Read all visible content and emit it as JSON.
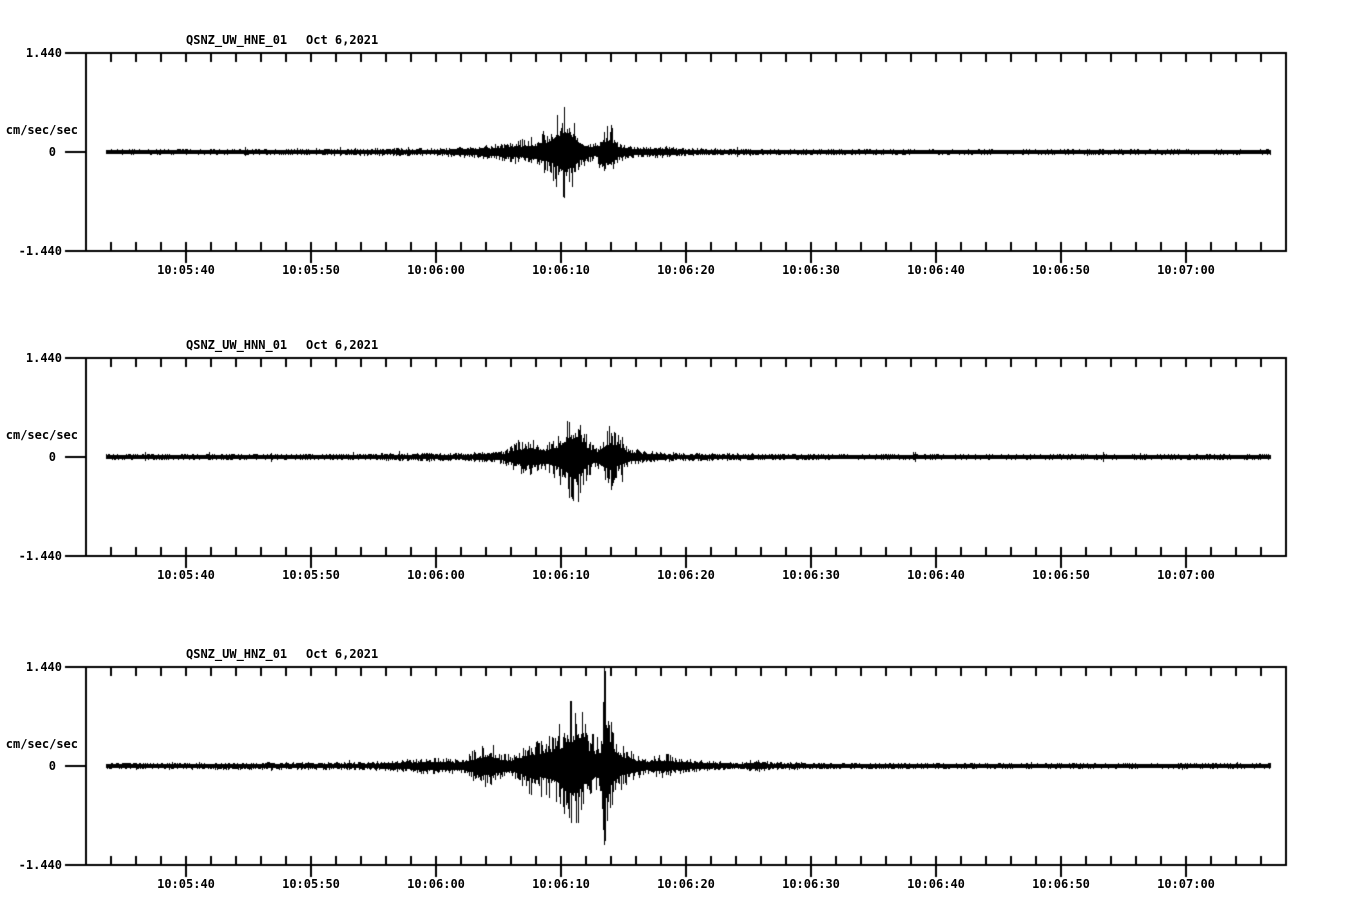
{
  "page": {
    "background": "#ffffff",
    "trace_color": "#000000"
  },
  "x_axis": {
    "tick_labels": [
      "10:05:40",
      "10:05:50",
      "10:06:00",
      "10:06:10",
      "10:06:20",
      "10:06:30",
      "10:06:40",
      "10:06:50",
      "10:07:00"
    ]
  },
  "panels": [
    {
      "station": "QSNZ_UW_HNE_01",
      "date": "Oct 6,2021",
      "y_axis": {
        "max": "1.440",
        "units": "cm/sec/sec",
        "zero": "0",
        "min": "-1.440"
      }
    },
    {
      "station": "QSNZ_UW_HNN_01",
      "date": "Oct 6,2021",
      "y_axis": {
        "max": "1.440",
        "units": "cm/sec/sec",
        "zero": "0",
        "min": "-1.440"
      }
    },
    {
      "station": "QSNZ_UW_HNZ_01",
      "date": "Oct 6,2021",
      "y_axis": {
        "max": "1.440",
        "units": "cm/sec/sec",
        "zero": "0",
        "min": "-1.440"
      }
    }
  ],
  "chart_data": [
    {
      "type": "line",
      "subtype": "seismogram",
      "title": "QSNZ_UW_HNE_01  Oct 6,2021",
      "ylabel": "cm/sec/sec",
      "ylim": [
        -1.44,
        1.44
      ],
      "yticks": [
        -1.44,
        0,
        1.44
      ],
      "x_start": "10:05:32",
      "x_end": "10:07:08",
      "x_tick_labels": [
        "10:05:40",
        "10:05:50",
        "10:06:00",
        "10:06:10",
        "10:06:20",
        "10:06:30",
        "10:06:40",
        "10:06:50",
        "10:07:00"
      ],
      "x_minor_tick_sec": 2,
      "x_major_tick_sec": 10,
      "series": [
        {
          "name": "QSNZ_UW_HNE_01",
          "units": "cm/sec/sec",
          "time_origin": "10:05:32",
          "envelope_points_t_sec_amp": [
            [
              1.6,
              0.03
            ],
            [
              10,
              0.028
            ],
            [
              18,
              0.03
            ],
            [
              24,
              0.042
            ],
            [
              25.5,
              0.055
            ],
            [
              27,
              0.042
            ],
            [
              29,
              0.055
            ],
            [
              31,
              0.08
            ],
            [
              33,
              0.11
            ],
            [
              34.5,
              0.16
            ],
            [
              36,
              0.22
            ],
            [
              37.3,
              0.4
            ],
            [
              38.3,
              0.76
            ],
            [
              39.0,
              0.5
            ],
            [
              39.7,
              0.2
            ],
            [
              40.8,
              0.13
            ],
            [
              41.4,
              0.34
            ],
            [
              41.9,
              0.44
            ],
            [
              42.5,
              0.18
            ],
            [
              43.2,
              0.09
            ],
            [
              44.5,
              0.065
            ],
            [
              46.2,
              0.07
            ],
            [
              48,
              0.05
            ],
            [
              52,
              0.04
            ],
            [
              58,
              0.032
            ],
            [
              70,
              0.028
            ],
            [
              94.7,
              0.028
            ]
          ]
        }
      ]
    },
    {
      "type": "line",
      "subtype": "seismogram",
      "title": "QSNZ_UW_HNN_01  Oct 6,2021",
      "ylabel": "cm/sec/sec",
      "ylim": [
        -1.44,
        1.44
      ],
      "yticks": [
        -1.44,
        0,
        1.44
      ],
      "x_start": "10:05:32",
      "x_end": "10:07:08",
      "x_tick_labels": [
        "10:05:40",
        "10:05:50",
        "10:06:00",
        "10:06:10",
        "10:06:20",
        "10:06:30",
        "10:06:40",
        "10:06:50",
        "10:07:00"
      ],
      "x_minor_tick_sec": 2,
      "x_major_tick_sec": 10,
      "series": [
        {
          "name": "QSNZ_UW_HNN_01",
          "units": "cm/sec/sec",
          "time_origin": "10:05:32",
          "envelope_points_t_sec_amp": [
            [
              1.6,
              0.03
            ],
            [
              12,
              0.032
            ],
            [
              20,
              0.03
            ],
            [
              26,
              0.045
            ],
            [
              28,
              0.052
            ],
            [
              30,
              0.05
            ],
            [
              32,
              0.062
            ],
            [
              33.5,
              0.1
            ],
            [
              34.6,
              0.24
            ],
            [
              35.8,
              0.26
            ],
            [
              36.8,
              0.2
            ],
            [
              37.8,
              0.36
            ],
            [
              38.6,
              0.66
            ],
            [
              39.4,
              0.68
            ],
            [
              40.1,
              0.28
            ],
            [
              40.9,
              0.16
            ],
            [
              41.5,
              0.38
            ],
            [
              42.0,
              0.5
            ],
            [
              42.6,
              0.3
            ],
            [
              43.4,
              0.13
            ],
            [
              44.5,
              0.08
            ],
            [
              46,
              0.06
            ],
            [
              48,
              0.05
            ],
            [
              51,
              0.04
            ],
            [
              58,
              0.032
            ],
            [
              70,
              0.028
            ],
            [
              94.7,
              0.028
            ]
          ]
        }
      ]
    },
    {
      "type": "line",
      "subtype": "seismogram",
      "title": "QSNZ_UW_HNZ_01  Oct 6,2021",
      "ylabel": "cm/sec/sec",
      "ylim": [
        -1.44,
        1.44
      ],
      "yticks": [
        -1.44,
        0,
        1.44
      ],
      "x_start": "10:05:32",
      "x_end": "10:07:08",
      "x_tick_labels": [
        "10:05:40",
        "10:05:50",
        "10:06:00",
        "10:06:10",
        "10:06:20",
        "10:06:30",
        "10:06:40",
        "10:06:50",
        "10:07:00"
      ],
      "x_minor_tick_sec": 2,
      "x_major_tick_sec": 10,
      "series": [
        {
          "name": "QSNZ_UW_HNZ_01",
          "units": "cm/sec/sec",
          "time_origin": "10:05:32",
          "envelope_points_t_sec_amp": [
            [
              1.6,
              0.035
            ],
            [
              8,
              0.04
            ],
            [
              16,
              0.04
            ],
            [
              22,
              0.05
            ],
            [
              25,
              0.07
            ],
            [
              27,
              0.11
            ],
            [
              28.5,
              0.1
            ],
            [
              30,
              0.1
            ],
            [
              31.3,
              0.26
            ],
            [
              32.3,
              0.33
            ],
            [
              33.2,
              0.2
            ],
            [
              34,
              0.16
            ],
            [
              34.8,
              0.28
            ],
            [
              35.6,
              0.42
            ],
            [
              36.5,
              0.4
            ],
            [
              37.2,
              0.5
            ],
            [
              38.0,
              0.65
            ],
            [
              38.7,
              0.95
            ],
            [
              39.5,
              0.85
            ],
            [
              40.2,
              0.55
            ],
            [
              40.8,
              0.4
            ],
            [
              41.2,
              0.5
            ],
            [
              41.45,
              1.5
            ],
            [
              41.8,
              0.9
            ],
            [
              42.3,
              0.5
            ],
            [
              43.0,
              0.3
            ],
            [
              44,
              0.18
            ],
            [
              45,
              0.12
            ],
            [
              46.3,
              0.17
            ],
            [
              47.2,
              0.12
            ],
            [
              48.5,
              0.08
            ],
            [
              50,
              0.055
            ],
            [
              52.5,
              0.05
            ],
            [
              53.5,
              0.08
            ],
            [
              55,
              0.045
            ],
            [
              60,
              0.035
            ],
            [
              75,
              0.03
            ],
            [
              94.7,
              0.03
            ]
          ]
        }
      ]
    }
  ]
}
